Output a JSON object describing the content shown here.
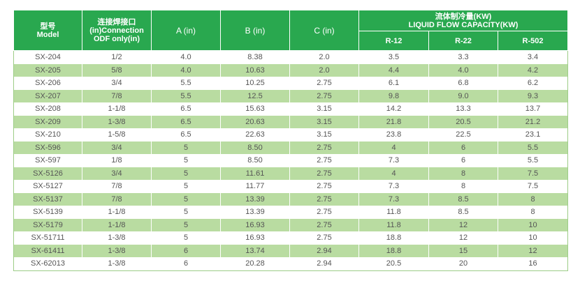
{
  "header": {
    "model_cn": "型号",
    "model_en": "Model",
    "conn_cn": "连接焊接口",
    "conn_en1": "(in)Connection",
    "conn_en2": "ODF only(in)",
    "a": "A (in)",
    "b": "B (in)",
    "c": "C (in)",
    "cap_cn": "流体制冷量(KW)",
    "cap_en": "LIQUID FLOW CAPACITY(KW)",
    "r12": "R-12",
    "r22": "R-22",
    "r502": "R-502"
  },
  "rows": [
    [
      "SX-204",
      "1/2",
      "4.0",
      "8.38",
      "2.0",
      "3.5",
      "3.3",
      "3.4"
    ],
    [
      "SX-205",
      "5/8",
      "4.0",
      "10.63",
      "2.0",
      "4.4",
      "4.0",
      "4.2"
    ],
    [
      "SX-206",
      "3/4",
      "5.5",
      "10.25",
      "2.75",
      "6.1",
      "6.8",
      "6.2"
    ],
    [
      "SX-207",
      "7/8",
      "5.5",
      "12.5",
      "2.75",
      "9.8",
      "9.0",
      "9.3"
    ],
    [
      "SX-208",
      "1-1/8",
      "6.5",
      "15.63",
      "3.15",
      "14.2",
      "13.3",
      "13.7"
    ],
    [
      "SX-209",
      "1-3/8",
      "6.5",
      "20.63",
      "3.15",
      "21.8",
      "20.5",
      "21.2"
    ],
    [
      "SX-210",
      "1-5/8",
      "6.5",
      "22.63",
      "3.15",
      "23.8",
      "22.5",
      "23.1"
    ],
    [
      "SX-596",
      "3/4",
      "5",
      "8.50",
      "2.75",
      "4",
      "6",
      "5.5"
    ],
    [
      "SX-597",
      "1/8",
      "5",
      "8.50",
      "2.75",
      "7.3",
      "6",
      "5.5"
    ],
    [
      "SX-5126",
      "3/4",
      "5",
      "11.61",
      "2.75",
      "4",
      "8",
      "7.5"
    ],
    [
      "SX-5127",
      "7/8",
      "5",
      "11.77",
      "2.75",
      "7.3",
      "8",
      "7.5"
    ],
    [
      "SX-5137",
      "7/8",
      "5",
      "13.39",
      "2.75",
      "7.3",
      "8.5",
      "8"
    ],
    [
      "SX-5139",
      "1-1/8",
      "5",
      "13.39",
      "2.75",
      "11.8",
      "8.5",
      "8"
    ],
    [
      "SX-5179",
      "1-1/8",
      "5",
      "16.93",
      "2.75",
      "11.8",
      "12",
      "10"
    ],
    [
      "SX-51711",
      "1-3/8",
      "5",
      "16.93",
      "2.75",
      "18.8",
      "12",
      "10"
    ],
    [
      "SX-61411",
      "1-3/8",
      "6",
      "13.74",
      "2.94",
      "18.8",
      "15",
      "12"
    ],
    [
      "SX-62013",
      "1-3/8",
      "6",
      "20.28",
      "2.94",
      "20.5",
      "20",
      "16"
    ]
  ]
}
